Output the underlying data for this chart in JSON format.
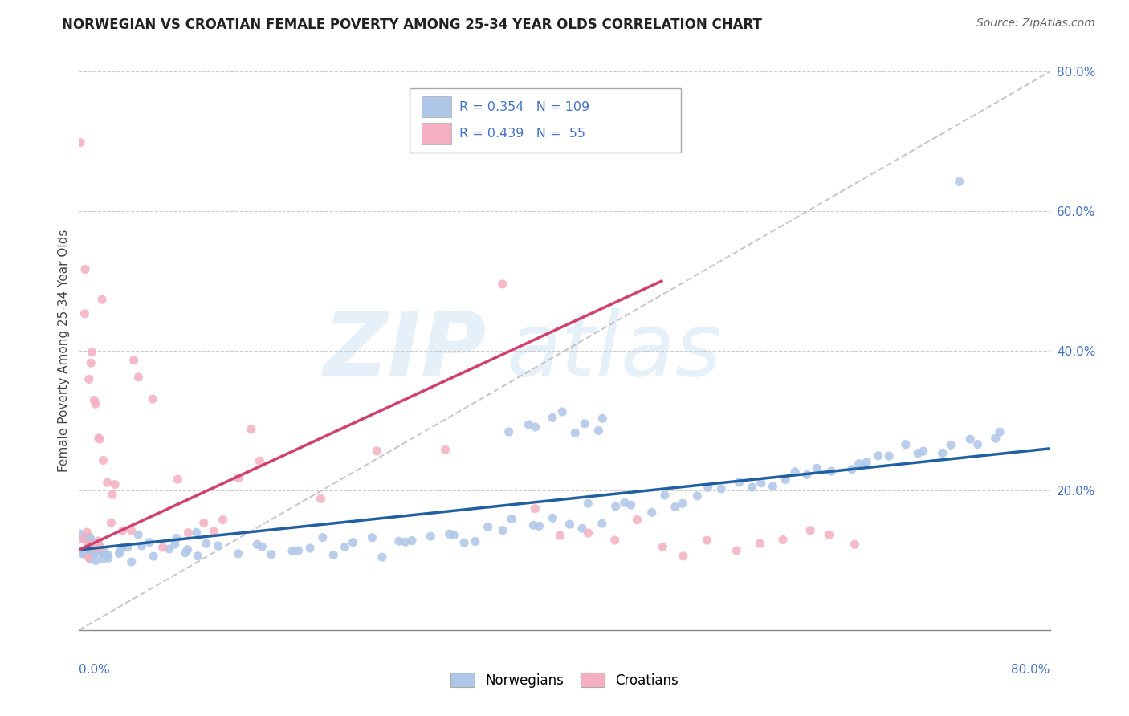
{
  "title": "NORWEGIAN VS CROATIAN FEMALE POVERTY AMONG 25-34 YEAR OLDS CORRELATION CHART",
  "source": "Source: ZipAtlas.com",
  "ylabel": "Female Poverty Among 25-34 Year Olds",
  "norwegian_R": 0.354,
  "norwegian_N": 109,
  "croatian_R": 0.439,
  "croatian_N": 55,
  "norwegian_color": "#aec6e8",
  "norwegian_line_color": "#2060a0",
  "croatian_color": "#f4b0c0",
  "croatian_line_color": "#d04070",
  "diagonal_color": "#bbbbbb",
  "xlim": [
    0.0,
    0.8
  ],
  "ylim": [
    0.0,
    0.8
  ],
  "nor_line_x0": 0.0,
  "nor_line_y0": 0.115,
  "nor_line_x1": 0.8,
  "nor_line_y1": 0.26,
  "cro_line_x0": 0.0,
  "cro_line_y0": 0.115,
  "cro_line_x1": 0.48,
  "cro_line_y1": 0.5,
  "nor_scatter_x": [
    0.002,
    0.003,
    0.004,
    0.004,
    0.005,
    0.005,
    0.006,
    0.006,
    0.007,
    0.007,
    0.008,
    0.008,
    0.009,
    0.009,
    0.01,
    0.01,
    0.011,
    0.012,
    0.013,
    0.014,
    0.015,
    0.016,
    0.017,
    0.018,
    0.02,
    0.022,
    0.025,
    0.028,
    0.03,
    0.035,
    0.038,
    0.04,
    0.045,
    0.05,
    0.055,
    0.06,
    0.065,
    0.07,
    0.075,
    0.08,
    0.085,
    0.09,
    0.095,
    0.1,
    0.11,
    0.12,
    0.13,
    0.14,
    0.15,
    0.16,
    0.17,
    0.18,
    0.19,
    0.2,
    0.21,
    0.22,
    0.23,
    0.24,
    0.25,
    0.26,
    0.27,
    0.28,
    0.29,
    0.3,
    0.31,
    0.32,
    0.33,
    0.34,
    0.35,
    0.36,
    0.37,
    0.38,
    0.39,
    0.4,
    0.41,
    0.42,
    0.43,
    0.44,
    0.45,
    0.46,
    0.47,
    0.48,
    0.49,
    0.5,
    0.51,
    0.52,
    0.53,
    0.54,
    0.55,
    0.56,
    0.57,
    0.58,
    0.59,
    0.6,
    0.61,
    0.62,
    0.63,
    0.64,
    0.65,
    0.66,
    0.67,
    0.68,
    0.69,
    0.7,
    0.71,
    0.72,
    0.73,
    0.74,
    0.75,
    0.76
  ],
  "nor_scatter_y": [
    0.115,
    0.12,
    0.105,
    0.13,
    0.11,
    0.125,
    0.108,
    0.135,
    0.112,
    0.128,
    0.115,
    0.122,
    0.118,
    0.132,
    0.11,
    0.125,
    0.112,
    0.12,
    0.115,
    0.128,
    0.108,
    0.118,
    0.125,
    0.112,
    0.12,
    0.115,
    0.11,
    0.118,
    0.112,
    0.125,
    0.118,
    0.112,
    0.12,
    0.115,
    0.128,
    0.112,
    0.118,
    0.11,
    0.122,
    0.115,
    0.118,
    0.112,
    0.125,
    0.118,
    0.12,
    0.112,
    0.115,
    0.118,
    0.128,
    0.115,
    0.12,
    0.112,
    0.118,
    0.125,
    0.115,
    0.12,
    0.118,
    0.128,
    0.115,
    0.122,
    0.13,
    0.125,
    0.132,
    0.128,
    0.135,
    0.14,
    0.138,
    0.142,
    0.145,
    0.15,
    0.148,
    0.155,
    0.152,
    0.158,
    0.162,
    0.165,
    0.168,
    0.172,
    0.175,
    0.178,
    0.182,
    0.185,
    0.188,
    0.192,
    0.195,
    0.198,
    0.2,
    0.205,
    0.208,
    0.212,
    0.215,
    0.218,
    0.222,
    0.225,
    0.228,
    0.232,
    0.235,
    0.238,
    0.242,
    0.245,
    0.248,
    0.252,
    0.255,
    0.258,
    0.262,
    0.265,
    0.268,
    0.272,
    0.275,
    0.278
  ],
  "nor_extra_x": [
    0.355,
    0.375,
    0.395,
    0.415,
    0.435,
    0.37,
    0.39,
    0.41,
    0.43,
    0.72
  ],
  "nor_extra_y": [
    0.285,
    0.295,
    0.305,
    0.295,
    0.3,
    0.285,
    0.295,
    0.285,
    0.29,
    0.64
  ],
  "cro_scatter_x": [
    0.002,
    0.003,
    0.004,
    0.005,
    0.006,
    0.007,
    0.008,
    0.009,
    0.01,
    0.011,
    0.012,
    0.013,
    0.014,
    0.015,
    0.016,
    0.017,
    0.018,
    0.019,
    0.02,
    0.022,
    0.025,
    0.028,
    0.03,
    0.035,
    0.04,
    0.045,
    0.05,
    0.06,
    0.07,
    0.08,
    0.09,
    0.1,
    0.11,
    0.12,
    0.13,
    0.14,
    0.15,
    0.2,
    0.25,
    0.3,
    0.35,
    0.38,
    0.4,
    0.42,
    0.44,
    0.46,
    0.48,
    0.5,
    0.52,
    0.54,
    0.56,
    0.58,
    0.6,
    0.62,
    0.64
  ],
  "cro_scatter_y": [
    0.12,
    0.68,
    0.14,
    0.5,
    0.13,
    0.45,
    0.4,
    0.12,
    0.38,
    0.35,
    0.12,
    0.33,
    0.31,
    0.14,
    0.29,
    0.48,
    0.13,
    0.26,
    0.24,
    0.22,
    0.2,
    0.18,
    0.16,
    0.15,
    0.14,
    0.38,
    0.36,
    0.34,
    0.13,
    0.21,
    0.14,
    0.17,
    0.13,
    0.15,
    0.22,
    0.29,
    0.24,
    0.195,
    0.27,
    0.255,
    0.51,
    0.17,
    0.15,
    0.14,
    0.13,
    0.14,
    0.13,
    0.12,
    0.135,
    0.125,
    0.13,
    0.125,
    0.135,
    0.12,
    0.13
  ]
}
